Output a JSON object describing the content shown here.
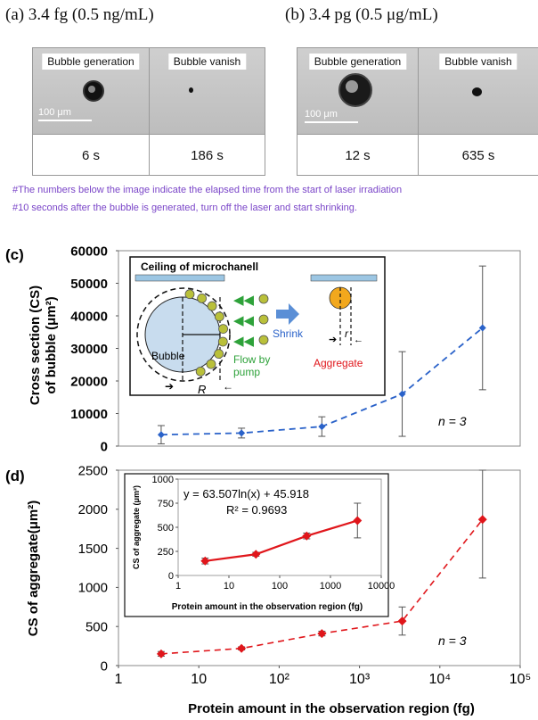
{
  "panel_a": {
    "title": "(a) 3.4 fg (0.5 ng/mL)",
    "tag_left": "Bubble generation",
    "tag_right": "Bubble vanish",
    "scale": "100 μm",
    "time_left": "6 s",
    "time_right": "186 s"
  },
  "panel_b": {
    "title": "(b) 3.4 pg (0.5 μg/mL)",
    "tag_left": "Bubble generation",
    "tag_right": "Bubble vanish",
    "scale": "100 μm",
    "time_left": "12 s",
    "time_right": "635 s"
  },
  "notes": [
    "#The numbers below the image indicate the elapsed time from the start of laser irradiation",
    "#10 seconds after the bubble is generated, turn off the laser and start shrinking."
  ],
  "colors": {
    "blue": "#2a62c9",
    "red": "#e0161b",
    "note": "#7a45c8"
  },
  "schematic": {
    "ceiling": "Ceiling of microchanell",
    "bubble": "Bubble",
    "flow": "Flow by\npump",
    "shrink": "Shrink",
    "aggregate": "Aggregate",
    "R": "R",
    "r": "r"
  },
  "chart_data": [
    {
      "type": "line",
      "label": "(c)",
      "ylabel": "Cross section (CS)\nof bubble (μm²)",
      "xscale": "log",
      "xlim": [
        1,
        100000
      ],
      "ylim": [
        0,
        60000
      ],
      "yticks": [
        "0",
        "10000",
        "20000",
        "30000",
        "40000",
        "50000",
        "60000"
      ],
      "x": [
        3.4,
        34,
        340,
        3400,
        34000
      ],
      "y": [
        3500,
        4000,
        6000,
        16000,
        36300
      ],
      "err": [
        2800,
        1500,
        3000,
        13000,
        19000
      ],
      "annotation": "n = 3",
      "color": "#2a62c9"
    },
    {
      "type": "line",
      "label": "(d)",
      "ylabel": "CS of aggregate(μm²)",
      "xlabel": "Protein amount in the observation region (fg)",
      "xscale": "log",
      "xlim": [
        1,
        100000
      ],
      "xticks": [
        "1",
        "10",
        "10²",
        "10³",
        "10⁴",
        "10⁵"
      ],
      "ylim": [
        0,
        2500
      ],
      "yticks": [
        "0",
        "500",
        "1000",
        "1500",
        "2000",
        "2500"
      ],
      "x": [
        3.4,
        34,
        340,
        3400,
        34000
      ],
      "y": [
        150,
        220,
        410,
        570,
        1870
      ],
      "err": [
        30,
        20,
        30,
        180,
        750
      ],
      "annotation": "n = 3",
      "color": "#e0161b"
    },
    {
      "type": "line",
      "label": "inset",
      "ylabel": "CS of aggregate (μm²)",
      "xlabel": "Protein amount in the observation region (fg)",
      "xscale": "log",
      "xlim": [
        1,
        10000
      ],
      "xticks": [
        "1",
        "10",
        "100",
        "1000",
        "10000"
      ],
      "ylim": [
        0,
        1000
      ],
      "yticks": [
        "0",
        "250",
        "500",
        "750",
        "1000"
      ],
      "x": [
        3.4,
        34,
        340,
        3400
      ],
      "y": [
        150,
        220,
        410,
        570
      ],
      "err": [
        30,
        20,
        30,
        180
      ],
      "equation": "y = 63.507ln(x) + 45.918",
      "r2": "R² = 0.9693",
      "color": "#e0161b"
    }
  ]
}
